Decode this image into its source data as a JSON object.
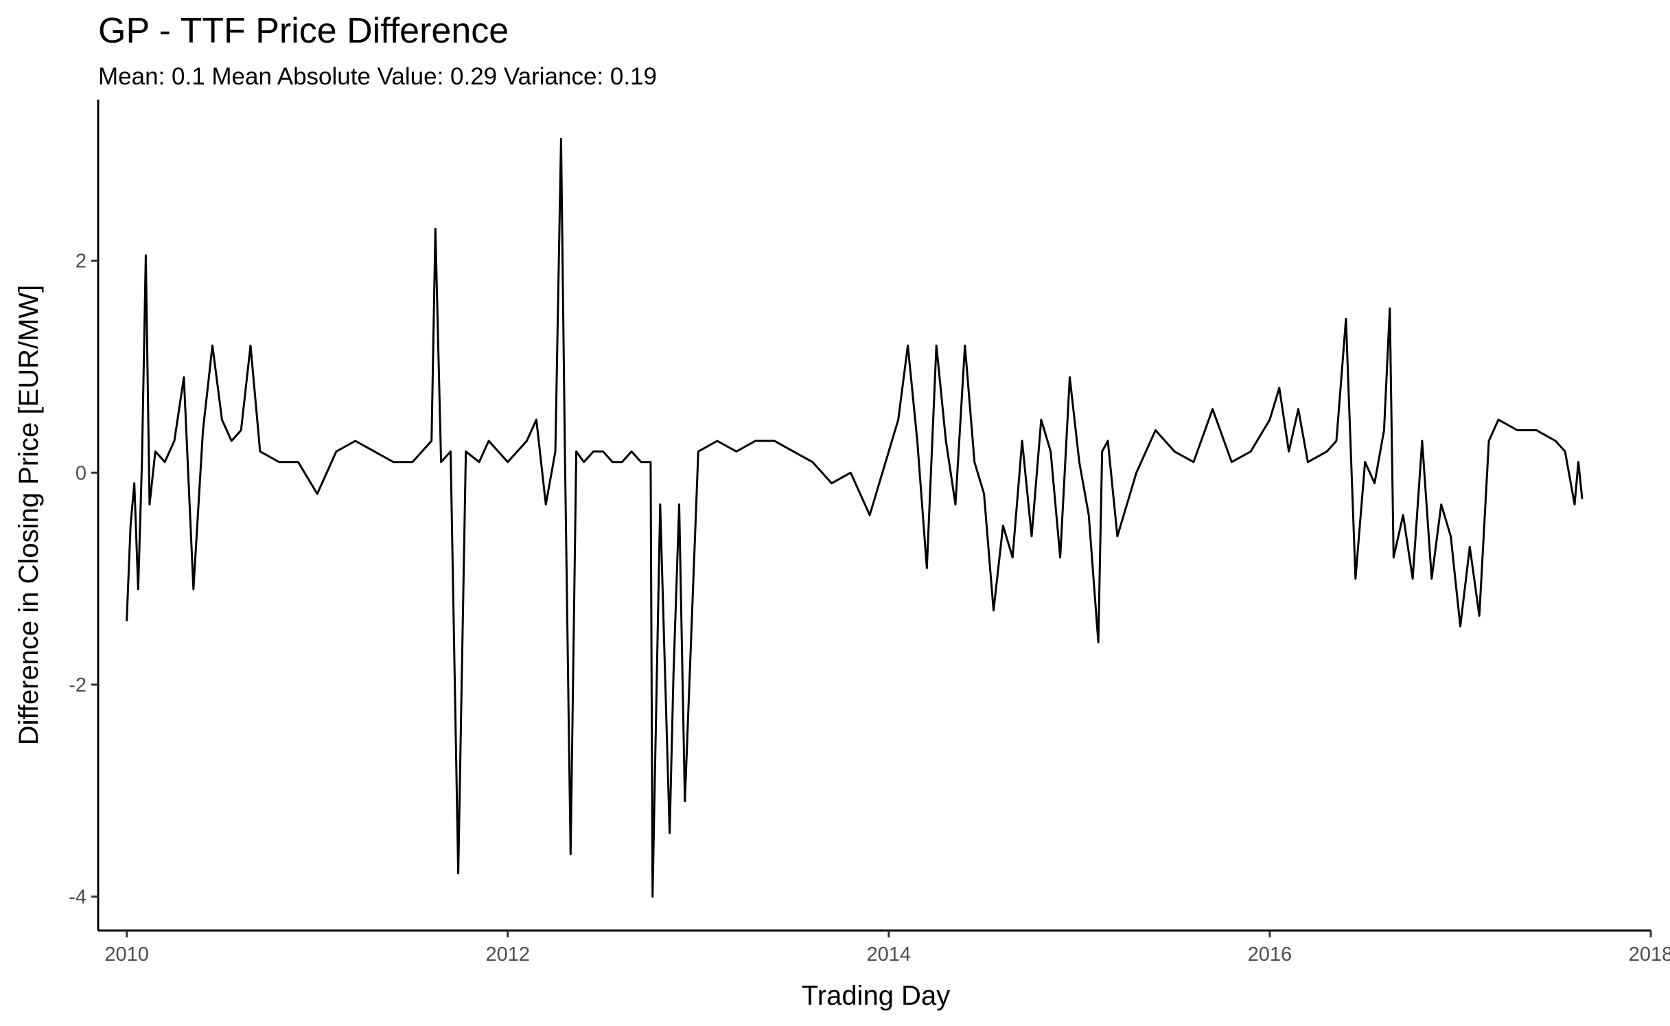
{
  "chart_data": {
    "type": "line",
    "title": "GP - TTF  Price Difference",
    "subtitle": "Mean: 0.1 Mean Absolute Value: 0.29 Variance: 0.19",
    "xlabel": "Trading Day",
    "ylabel": "Difference in Closing Price [EUR/MW]",
    "xlim": [
      2009.85,
      2018.0
    ],
    "ylim": [
      -4.32,
      3.52
    ],
    "x_ticks": [
      2010,
      2012,
      2014,
      2016,
      2018
    ],
    "x_tick_labels": [
      "2010",
      "2012",
      "2014",
      "2016",
      "2018"
    ],
    "y_ticks": [
      -4,
      -2,
      0,
      2
    ],
    "y_tick_labels": [
      "-4",
      "-2",
      "0",
      "2"
    ],
    "grid": false,
    "line_color": "#000000",
    "series": [
      {
        "x": [
          2010.0,
          2010.02,
          2010.04,
          2010.06,
          2010.08,
          2010.1,
          2010.12,
          2010.15,
          2010.2,
          2010.25,
          2010.3,
          2010.35,
          2010.4,
          2010.45,
          2010.5,
          2010.55,
          2010.6,
          2010.65,
          2010.7,
          2010.8,
          2010.9,
          2011.0,
          2011.1,
          2011.2,
          2011.3,
          2011.4,
          2011.5,
          2011.6,
          2011.62,
          2011.65,
          2011.7,
          2011.74,
          2011.78,
          2011.85,
          2011.9,
          2012.0,
          2012.05,
          2012.1,
          2012.15,
          2012.2,
          2012.25,
          2012.28,
          2012.3,
          2012.33,
          2012.36,
          2012.4,
          2012.45,
          2012.5,
          2012.55,
          2012.6,
          2012.65,
          2012.7,
          2012.75,
          2012.76,
          2012.8,
          2012.85,
          2012.87,
          2012.9,
          2012.93,
          2013.0,
          2013.1,
          2013.2,
          2013.3,
          2013.4,
          2013.5,
          2013.6,
          2013.7,
          2013.8,
          2013.9,
          2014.0,
          2014.05,
          2014.1,
          2014.15,
          2014.2,
          2014.25,
          2014.3,
          2014.35,
          2014.4,
          2014.45,
          2014.5,
          2014.55,
          2014.6,
          2014.65,
          2014.7,
          2014.75,
          2014.8,
          2014.85,
          2014.9,
          2014.95,
          2015.0,
          2015.05,
          2015.1,
          2015.12,
          2015.15,
          2015.2,
          2015.3,
          2015.4,
          2015.5,
          2015.6,
          2015.7,
          2015.8,
          2015.9,
          2016.0,
          2016.05,
          2016.1,
          2016.15,
          2016.2,
          2016.3,
          2016.35,
          2016.4,
          2016.45,
          2016.5,
          2016.55,
          2016.6,
          2016.63,
          2016.65,
          2016.7,
          2016.75,
          2016.8,
          2016.85,
          2016.9,
          2016.95,
          2017.0,
          2017.05,
          2017.1,
          2017.15,
          2017.2,
          2017.3,
          2017.4,
          2017.5,
          2017.55,
          2017.6,
          2017.62,
          2017.64
        ],
        "y": [
          -1.4,
          -0.5,
          -0.1,
          -1.1,
          0.1,
          2.05,
          -0.3,
          0.2,
          0.1,
          0.3,
          0.9,
          -1.1,
          0.4,
          1.2,
          0.5,
          0.3,
          0.4,
          1.2,
          0.2,
          0.1,
          0.1,
          -0.2,
          0.2,
          0.3,
          0.2,
          0.1,
          0.1,
          0.3,
          2.3,
          0.1,
          0.2,
          -3.78,
          0.2,
          0.1,
          0.3,
          0.1,
          0.2,
          0.3,
          0.5,
          -0.3,
          0.2,
          3.15,
          0.2,
          -3.6,
          0.2,
          0.1,
          0.2,
          0.2,
          0.1,
          0.1,
          0.2,
          0.1,
          0.1,
          -4.0,
          -0.3,
          -3.4,
          -1.9,
          -0.3,
          -3.1,
          0.2,
          0.3,
          0.2,
          0.3,
          0.3,
          0.2,
          0.1,
          -0.1,
          0.0,
          -0.4,
          0.2,
          0.5,
          1.2,
          0.3,
          -0.9,
          1.2,
          0.3,
          -0.3,
          1.2,
          0.1,
          -0.2,
          -1.3,
          -0.5,
          -0.8,
          0.3,
          -0.6,
          0.5,
          0.2,
          -0.8,
          0.9,
          0.1,
          -0.4,
          -1.6,
          0.2,
          0.3,
          -0.6,
          0.0,
          0.4,
          0.2,
          0.1,
          0.6,
          0.1,
          0.2,
          0.5,
          0.8,
          0.2,
          0.6,
          0.1,
          0.2,
          0.3,
          1.45,
          -1.0,
          0.1,
          -0.1,
          0.4,
          1.55,
          -0.8,
          -0.4,
          -1.0,
          0.3,
          -1.0,
          -0.3,
          -0.6,
          -1.45,
          -0.7,
          -1.35,
          0.3,
          0.5,
          0.4,
          0.4,
          0.3,
          0.2,
          -0.3,
          0.1,
          -0.25
        ]
      }
    ]
  }
}
